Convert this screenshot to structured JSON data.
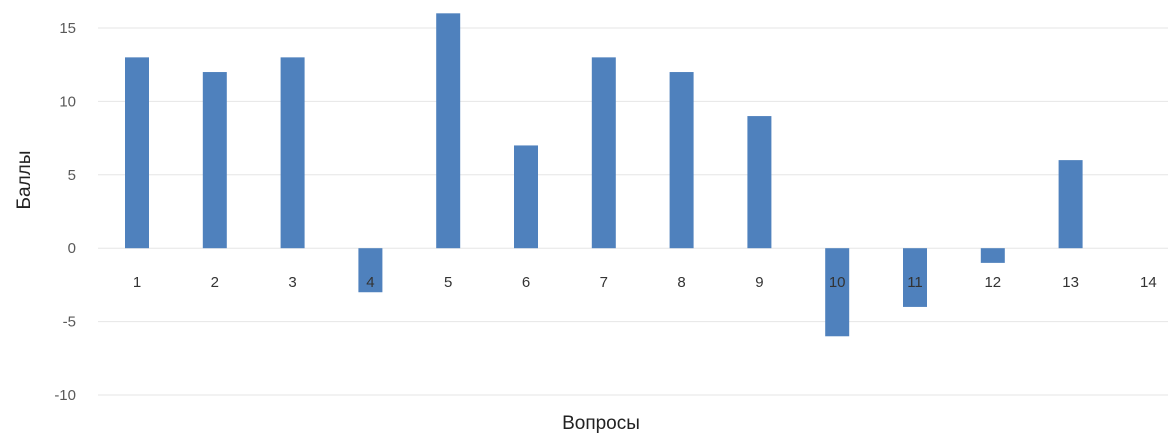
{
  "chart_data": {
    "type": "bar",
    "title": "",
    "xlabel": "Вопросы",
    "ylabel": "Баллы",
    "categories": [
      "1",
      "2",
      "3",
      "4",
      "5",
      "6",
      "7",
      "8",
      "9",
      "10",
      "11",
      "12",
      "13",
      "14"
    ],
    "values": [
      13,
      12,
      13,
      -3,
      16,
      7,
      13,
      12,
      9,
      -6,
      -4,
      -1,
      6,
      0
    ],
    "ylim": [
      -10,
      15
    ],
    "yticks": [
      -10,
      -5,
      0,
      5,
      10,
      15
    ],
    "grid": true,
    "legend": "none",
    "bar_color": "#4f81bd"
  }
}
